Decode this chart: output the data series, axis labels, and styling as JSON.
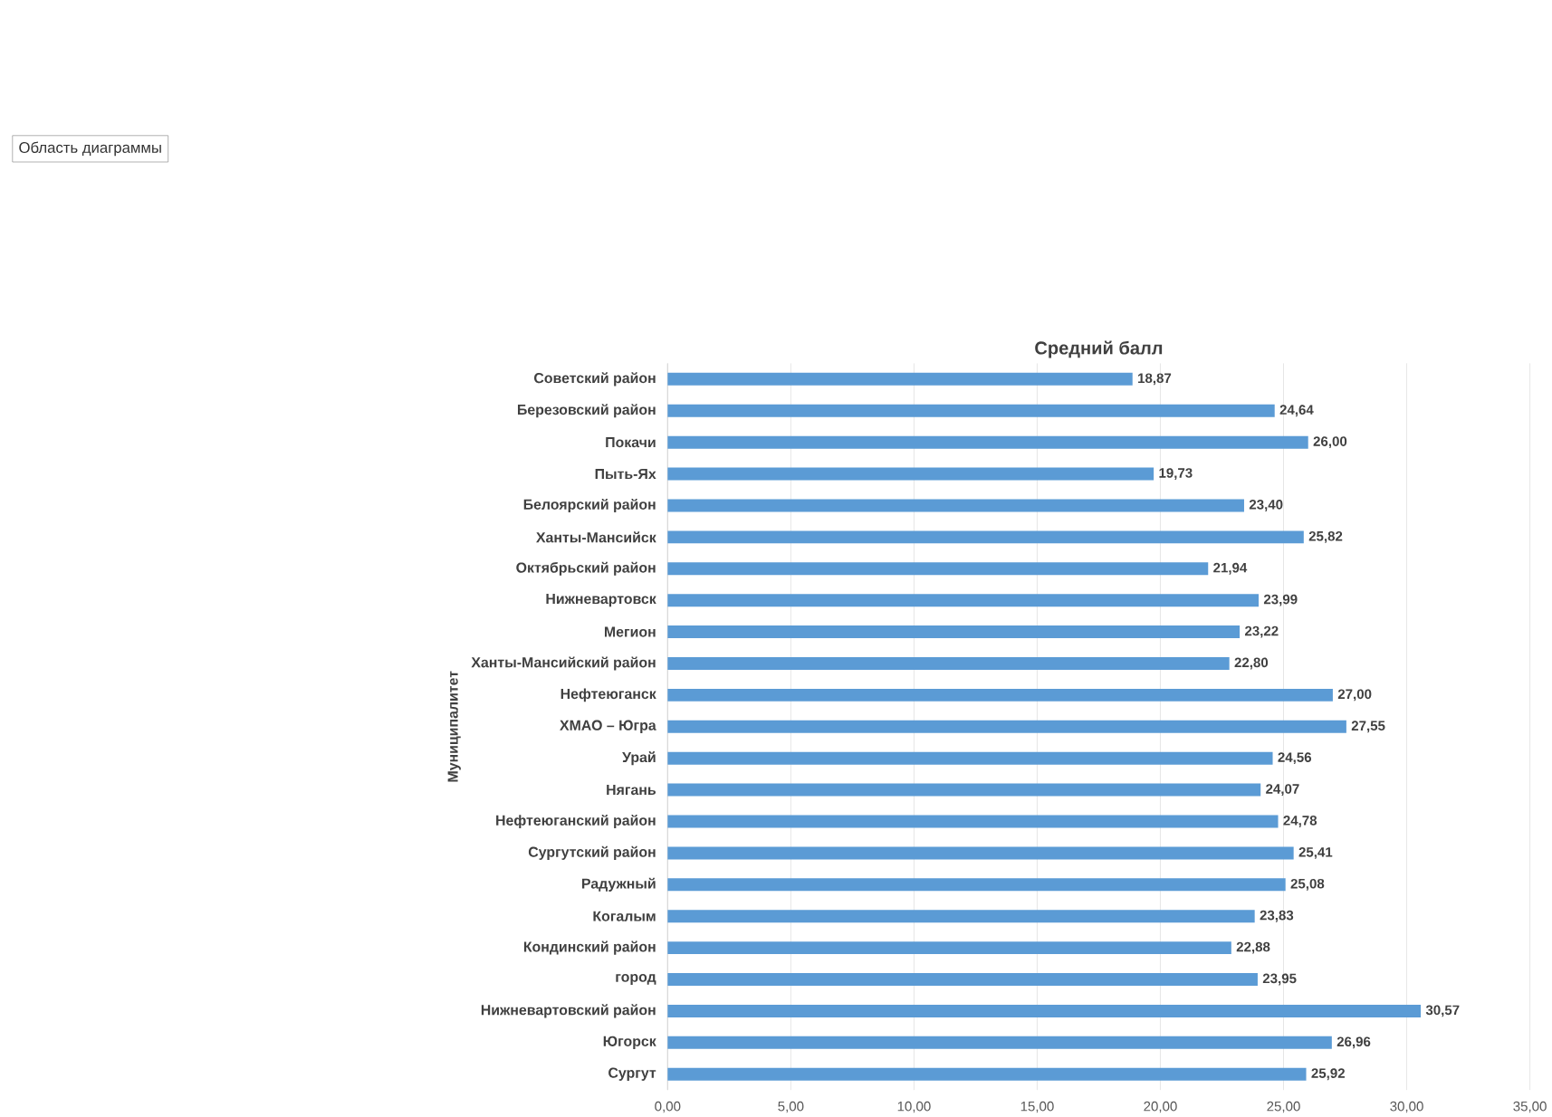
{
  "chart_data": {
    "type": "bar",
    "orientation": "horizontal",
    "title": "Средний балл",
    "ylabel": "Муниципалитет",
    "categories": [
      "Советский район",
      "Березовский район",
      "Покачи",
      "Пыть-Ях",
      "Белоярский район",
      "Ханты-Мансийск",
      "Октябрьский район",
      "Нижневартовск",
      "Мегион",
      "Ханты-Мансийский район",
      "Нефтеюганск",
      "ХМАО – Югра",
      "Урай",
      "Нягань",
      "Нефтеюганский район",
      "Сургутский район",
      "Радужный",
      "Когалым",
      "Кондинский район",
      "город",
      "Нижневартовский район",
      "Югорск",
      "Сургут"
    ],
    "values": [
      18.87,
      24.64,
      26.0,
      19.73,
      23.4,
      25.82,
      21.94,
      23.99,
      23.22,
      22.8,
      27.0,
      27.55,
      24.56,
      24.07,
      24.78,
      25.41,
      25.08,
      23.83,
      22.88,
      23.95,
      30.57,
      26.96,
      25.92
    ],
    "value_labels": [
      "18,87",
      "24,64",
      "26,00",
      "19,73",
      "23,40",
      "25,82",
      "21,94",
      "23,99",
      "23,22",
      "22,80",
      "27,00",
      "27,55",
      "24,56",
      "24,07",
      "24,78",
      "25,41",
      "25,08",
      "23,83",
      "22,88",
      "23,95",
      "30,57",
      "26,96",
      "25,92"
    ],
    "color": "#5b9bd5",
    "xlim": [
      0,
      35
    ],
    "xticks": [
      {
        "value": 0,
        "label": "0,00"
      },
      {
        "value": 5,
        "label": "5,00"
      },
      {
        "value": 10,
        "label": "10,00"
      },
      {
        "value": 15,
        "label": "15,00"
      },
      {
        "value": 20,
        "label": "20,00"
      },
      {
        "value": 25,
        "label": "25,00"
      },
      {
        "value": 30,
        "label": "30,00"
      },
      {
        "value": 35,
        "label": "35,00"
      }
    ],
    "grid": "x",
    "annotations": [
      "Область диаграммы"
    ]
  }
}
